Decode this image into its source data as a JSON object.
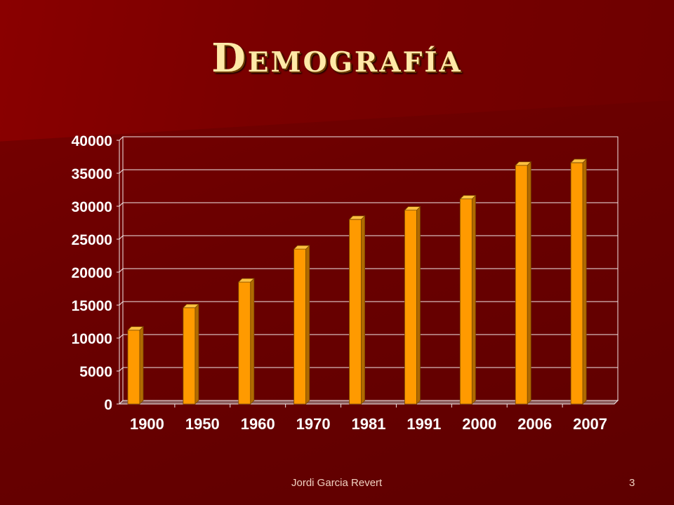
{
  "slide": {
    "title": "Demografía",
    "author": "Jordi Garcia Revert",
    "page_number": "3"
  },
  "colors": {
    "background": "#6a0000",
    "bar_front": "#ff9a00",
    "bar_side": "#b06a00",
    "bar_top": "#ffc040",
    "grid": "#f2e8e8",
    "tick_text": "#ffffff",
    "title": "#ffe9a8"
  },
  "chart_data": {
    "type": "bar",
    "style": "3d-column",
    "categories": [
      "1900",
      "1950",
      "1960",
      "1970",
      "1981",
      "1991",
      "2000",
      "2006",
      "2007"
    ],
    "values": [
      11200,
      14600,
      18500,
      23500,
      28000,
      29400,
      31100,
      36200,
      36600
    ],
    "ylim": [
      0,
      40000
    ],
    "yticks": [
      0,
      5000,
      10000,
      15000,
      20000,
      25000,
      30000,
      35000,
      40000
    ],
    "grid": true,
    "legend": false
  }
}
